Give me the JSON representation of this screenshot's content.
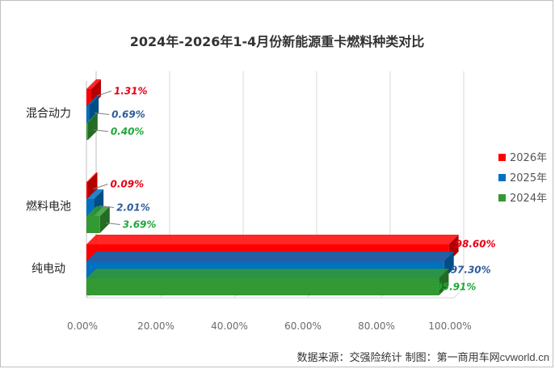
{
  "chart_data": {
    "type": "bar",
    "orientation": "horizontal",
    "style": "3d",
    "title": "2024年-2026年1-4月份新能源重卡燃料种类对比",
    "categories": [
      "混合动力",
      "燃料电池",
      "纯电动"
    ],
    "series": [
      {
        "name": "2026年",
        "color": "#ff0000",
        "label_color": "#e60012",
        "values": [
          1.31,
          0.09,
          98.6
        ],
        "labels": [
          "1.31%",
          "0.09%",
          "98.60%"
        ]
      },
      {
        "name": "2025年",
        "color": "#0070c0",
        "label_color": "#2e5c99",
        "values": [
          0.69,
          2.01,
          97.3
        ],
        "labels": [
          "0.69%",
          "2.01%",
          "97.30%"
        ]
      },
      {
        "name": "2024年",
        "color": "#339933",
        "label_color": "#1fa83a",
        "values": [
          0.4,
          3.69,
          95.91
        ],
        "labels": [
          "0.40%",
          "3.69%",
          "95.91%"
        ]
      }
    ],
    "xlim": [
      0,
      100
    ],
    "x_ticks": [
      "0.00%",
      "20.00%",
      "40.00%",
      "60.00%",
      "80.00%",
      "100.00%"
    ],
    "grid": true,
    "legend": "right"
  },
  "source_note": "数据来源：交强险统计 制图：第一商用车网",
  "watermark": "cvworld.cn"
}
